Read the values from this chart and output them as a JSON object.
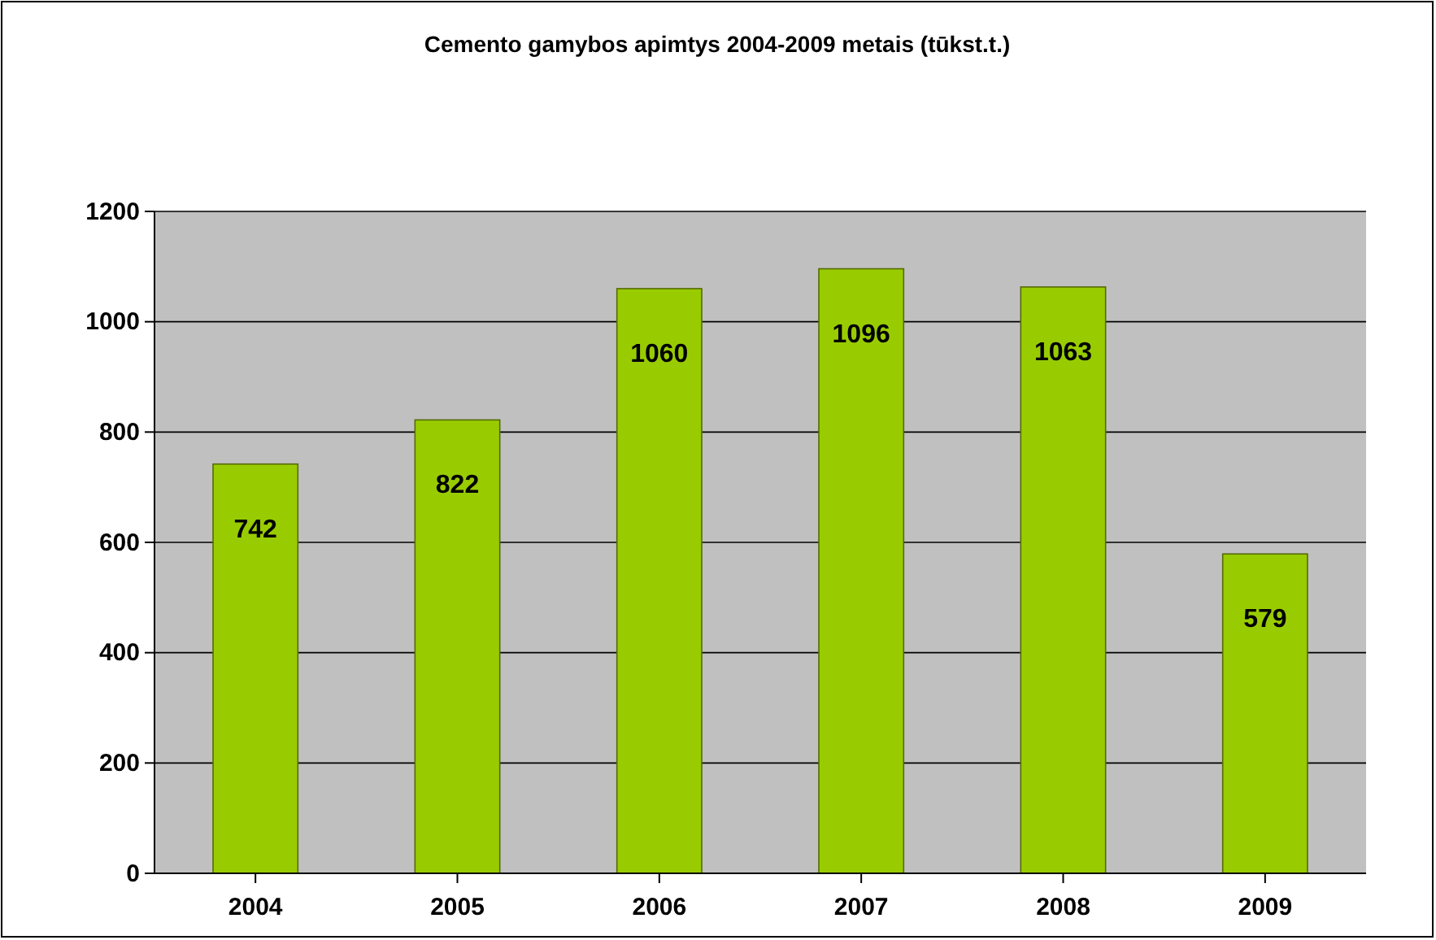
{
  "chart_data": {
    "type": "bar",
    "title": "Cemento gamybos apimtys 2004-2009 metais (tūkst.t.)",
    "categories": [
      "2004",
      "2005",
      "2006",
      "2007",
      "2008",
      "2009"
    ],
    "values": [
      742,
      822,
      1060,
      1096,
      1063,
      579
    ],
    "color": "#99cc00",
    "ylim": [
      0,
      1200
    ],
    "yticks": [
      0,
      200,
      400,
      600,
      800,
      1000,
      1200
    ],
    "grid": "y",
    "data_labels": true
  }
}
